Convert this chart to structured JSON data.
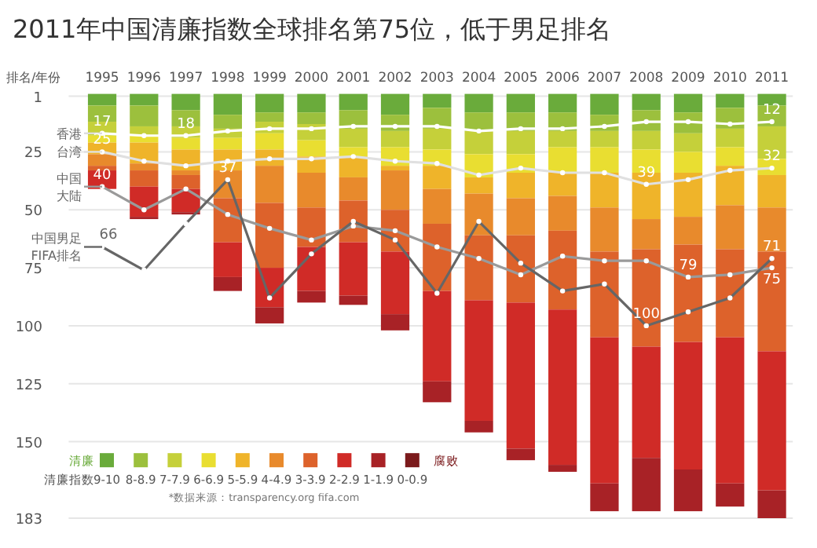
{
  "chart_data": {
    "type": "bar",
    "stacked": true,
    "title": "2011年中国清廉指数全球排名第75位，低于男足排名",
    "ylabel": "排名/年份",
    "legend_title": "清廉指数",
    "legend": "bottom",
    "grid": "y",
    "marker": "circle",
    "categories": [
      "1995",
      "1996",
      "1997",
      "1998",
      "1999",
      "2000",
      "2001",
      "2002",
      "2003",
      "2004",
      "2005",
      "2006",
      "2007",
      "2008",
      "2009",
      "2010",
      "2011"
    ],
    "ylim": [
      183,
      0
    ],
    "yticks": [
      1,
      25,
      50,
      75,
      100,
      125,
      150,
      183
    ],
    "series": [
      {
        "name": "9-10",
        "color": "#6aab3b",
        "values": [
          5,
          5,
          7,
          9,
          8,
          8,
          7,
          9,
          6,
          8,
          8,
          8,
          9,
          7,
          8,
          6,
          5
        ]
      },
      {
        "name": "8-8.9",
        "color": "#9cc03d",
        "values": [
          7,
          9,
          7,
          6,
          4,
          5,
          8,
          7,
          9,
          8,
          8,
          8,
          7,
          9,
          9,
          9,
          9
        ]
      },
      {
        "name": "7-7.9",
        "color": "#c5d03a",
        "values": [
          6,
          4,
          5,
          4,
          5,
          7,
          8,
          7,
          9,
          10,
          10,
          7,
          7,
          8,
          8,
          8,
          14
        ]
      },
      {
        "name": "6-6.9",
        "color": "#e9de31",
        "values": [
          3,
          3,
          5,
          5,
          7,
          7,
          4,
          8,
          7,
          10,
          8,
          11,
          11,
          10,
          9,
          8,
          7
        ]
      },
      {
        "name": "5-5.9",
        "color": "#efb42a",
        "values": [
          5,
          9,
          9,
          9,
          7,
          7,
          9,
          2,
          10,
          7,
          11,
          10,
          15,
          20,
          19,
          17,
          14
        ]
      },
      {
        "name": "4-4.9",
        "color": "#e88a2c",
        "values": [
          5,
          3,
          2,
          12,
          16,
          15,
          10,
          17,
          15,
          18,
          16,
          15,
          19,
          13,
          12,
          19,
          19
        ]
      },
      {
        "name": "3-3.9",
        "color": "#dd622b",
        "values": [
          2,
          7,
          6,
          19,
          28,
          17,
          18,
          18,
          29,
          28,
          29,
          34,
          37,
          42,
          42,
          38,
          43
        ]
      },
      {
        "name": "2-2.9",
        "color": "#d02b27",
        "values": [
          8,
          13,
          10,
          15,
          17,
          19,
          23,
          27,
          39,
          52,
          63,
          67,
          63,
          48,
          55,
          63,
          60
        ]
      },
      {
        "name": "1-1.9",
        "color": "#a82226",
        "values": [
          0,
          1,
          1,
          6,
          7,
          5,
          4,
          7,
          9,
          5,
          5,
          3,
          12,
          23,
          18,
          10,
          12
        ]
      },
      {
        "name": "0-0.9",
        "color": "#7b1a1c",
        "values": [
          0,
          0,
          0,
          0,
          0,
          0,
          0,
          0,
          0,
          0,
          0,
          0,
          0,
          0,
          0,
          0,
          0
        ]
      },
      {
        "name": "香港",
        "type": "line",
        "color": "#ffffff",
        "values": [
          17,
          18,
          18,
          16,
          15,
          15,
          14,
          14,
          14,
          16,
          15,
          15,
          14,
          12,
          12,
          13,
          12
        ],
        "value_labels": [
          "17",
          null,
          "18",
          null,
          null,
          null,
          null,
          null,
          null,
          null,
          null,
          null,
          null,
          null,
          null,
          null,
          "12"
        ]
      },
      {
        "name": "台湾",
        "type": "line",
        "color": "#e0e0e0",
        "values": [
          25,
          29,
          31,
          29,
          28,
          28,
          27,
          29,
          30,
          35,
          32,
          34,
          34,
          39,
          37,
          33,
          32
        ],
        "value_labels": [
          "25",
          null,
          null,
          null,
          null,
          null,
          null,
          null,
          null,
          null,
          null,
          null,
          null,
          "39",
          null,
          null,
          "32"
        ]
      },
      {
        "name": "中国大陆",
        "type": "line",
        "color": "#9a9a9a",
        "values": [
          40,
          50,
          41,
          52,
          58,
          63,
          57,
          59,
          66,
          71,
          78,
          70,
          72,
          72,
          79,
          78,
          75
        ],
        "value_labels": [
          "40",
          null,
          null,
          null,
          null,
          null,
          null,
          null,
          null,
          null,
          null,
          null,
          null,
          null,
          "79",
          null,
          "75"
        ]
      },
      {
        "name": "中国男足FIFA排名",
        "type": "line",
        "color": "#666666",
        "values": [
          66,
          76,
          56,
          37,
          88,
          69,
          55,
          63,
          86,
          55,
          73,
          85,
          82,
          100,
          94,
          88,
          71
        ],
        "value_labels": [
          "66",
          null,
          null,
          "37",
          null,
          null,
          null,
          null,
          null,
          null,
          null,
          null,
          null,
          "100",
          null,
          null,
          "71"
        ]
      }
    ],
    "annotations": [
      "清廉",
      "腐败",
      "*数据来源：transparency.org fifa.com"
    ]
  }
}
